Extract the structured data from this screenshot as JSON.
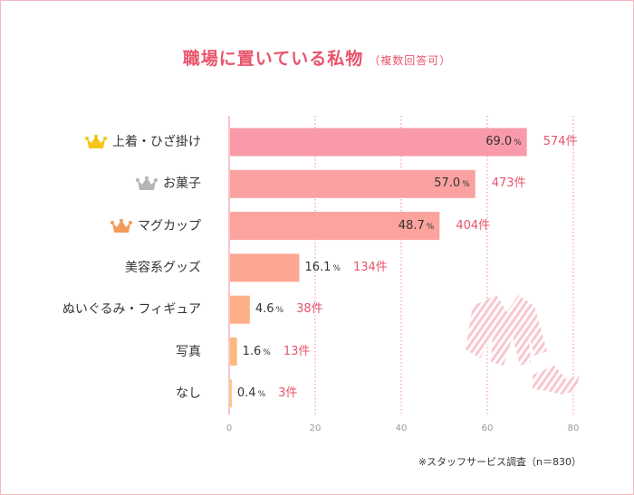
{
  "title": "職場に置いている私物",
  "subtitle": "（複数回答可）",
  "note": "※スタッフサービス調査（n＝830）",
  "colors": {
    "title": "#e8546c",
    "count_text": "#e8546c",
    "grid": "#f08a9a",
    "crown_gold": "#f5c518",
    "crown_silver": "#b5b5b5",
    "crown_bronze": "#f39a5c"
  },
  "chart_data": {
    "type": "bar",
    "orientation": "horizontal",
    "title": "職場に置いている私物",
    "subtitle": "（複数回答可）",
    "xlim": [
      0,
      80
    ],
    "ticks": [
      0,
      20,
      40,
      60,
      80
    ],
    "tick_labels": [
      "0",
      "20",
      "40",
      "60",
      "80"
    ],
    "grid": true,
    "percent_unit": "%",
    "items": [
      {
        "label": "上着・ひざ掛け",
        "value": 69.0,
        "value_text": "69.0",
        "count": "574件",
        "color": "#f99aaa",
        "crown": "gold"
      },
      {
        "label": "お菓子",
        "value": 57.0,
        "value_text": "57.0",
        "count": "473件",
        "color": "#fba1a1",
        "crown": "silver"
      },
      {
        "label": "マグカップ",
        "value": 48.7,
        "value_text": "48.7",
        "count": "404件",
        "color": "#fca39d",
        "crown": "bronze"
      },
      {
        "label": "美容系グッズ",
        "value": 16.1,
        "value_text": "16.1",
        "count": "134件",
        "color": "#fca791",
        "crown": ""
      },
      {
        "label": "ぬいぐるみ・フィギュア",
        "value": 4.6,
        "value_text": "4.6",
        "count": "38件",
        "color": "#fdb088",
        "crown": ""
      },
      {
        "label": "写真",
        "value": 1.6,
        "value_text": "1.6",
        "count": "13件",
        "color": "#fdb87c",
        "crown": ""
      },
      {
        "label": "なし",
        "value": 0.4,
        "value_text": "0.4",
        "count": "3件",
        "color": "#f9c87a",
        "crown": ""
      }
    ]
  }
}
